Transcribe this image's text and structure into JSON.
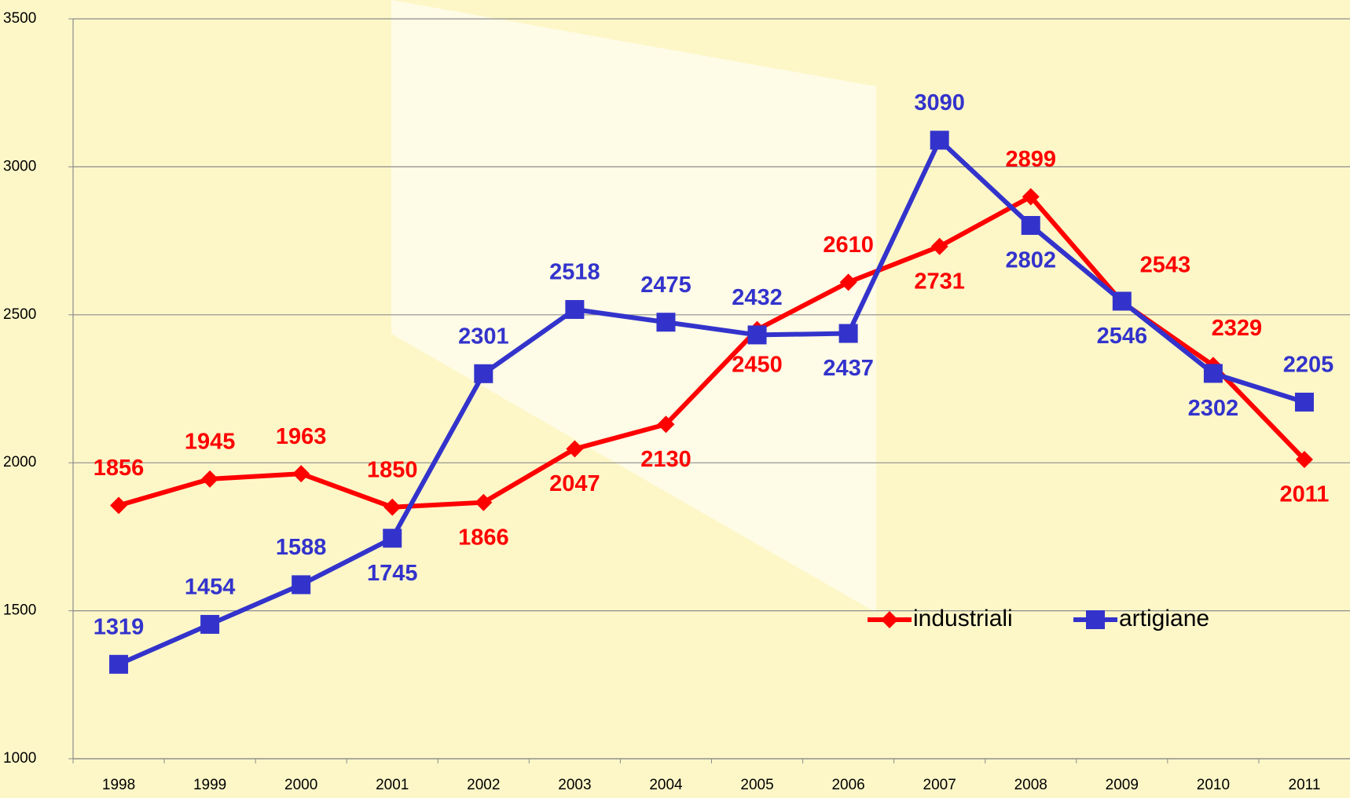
{
  "chart_data": {
    "type": "line",
    "categories": [
      "1998",
      "1999",
      "2000",
      "2001",
      "2002",
      "2003",
      "2004",
      "2005",
      "2006",
      "2007",
      "2008",
      "2009",
      "2010",
      "2011"
    ],
    "series": [
      {
        "name": "industriali",
        "color": "#ff0000",
        "marker": "diamond",
        "values": [
          1856,
          1945,
          1963,
          1850,
          1866,
          2047,
          2130,
          2450,
          2610,
          2731,
          2899,
          2543,
          2329,
          2011
        ]
      },
      {
        "name": "artigiane",
        "color": "#3333cc",
        "marker": "square",
        "values": [
          1319,
          1454,
          1588,
          1745,
          2301,
          2518,
          2475,
          2432,
          2437,
          3090,
          2802,
          2546,
          2302,
          2205
        ]
      }
    ],
    "ylim": [
      1000,
      3500
    ],
    "yticks": [
      1000,
      1500,
      2000,
      2500,
      3000,
      3500
    ],
    "grid": true
  }
}
